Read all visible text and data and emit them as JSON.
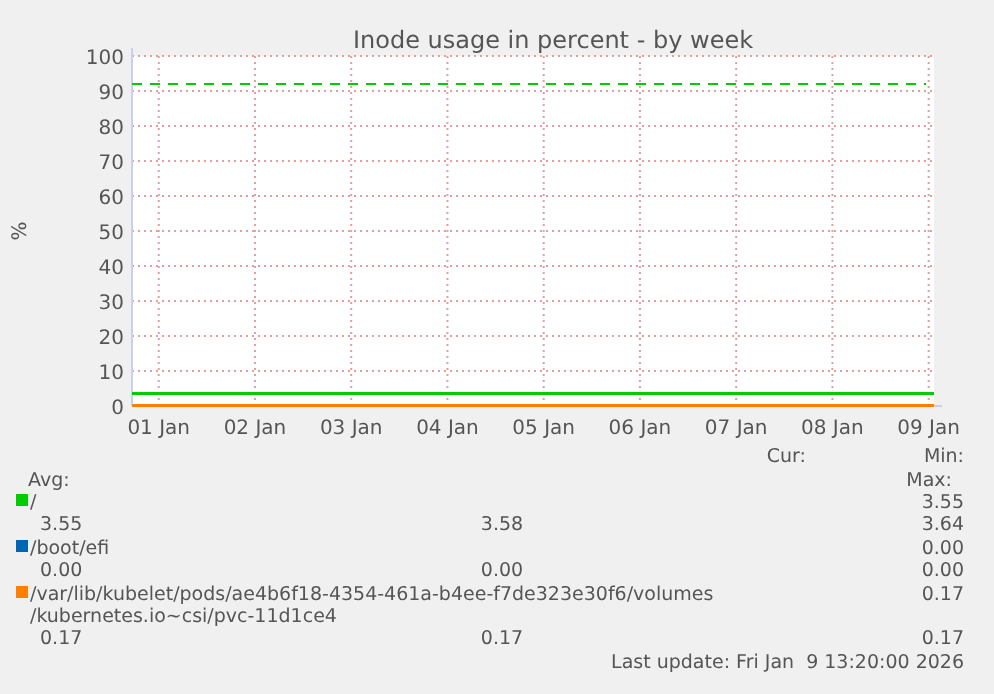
{
  "chart_data": {
    "type": "line",
    "title": "Inode usage in percent - by week",
    "ylabel": "%",
    "xlim": [
      "2026-01-01T05:20",
      "2026-01-09T13:20"
    ],
    "xticks": [
      {
        "value": "2026-01-01T12:00",
        "label": "01 Jan"
      },
      {
        "value": "2026-01-02T12:00",
        "label": "02 Jan"
      },
      {
        "value": "2026-01-03T12:00",
        "label": "03 Jan"
      },
      {
        "value": "2026-01-04T12:00",
        "label": "04 Jan"
      },
      {
        "value": "2026-01-05T12:00",
        "label": "05 Jan"
      },
      {
        "value": "2026-01-06T12:00",
        "label": "06 Jan"
      },
      {
        "value": "2026-01-07T12:00",
        "label": "07 Jan"
      },
      {
        "value": "2026-01-08T12:00",
        "label": "08 Jan"
      },
      {
        "value": "2026-01-09T12:00",
        "label": "09 Jan"
      }
    ],
    "ylim": [
      0,
      100
    ],
    "yticks": [
      0,
      10,
      20,
      30,
      40,
      50,
      60,
      70,
      80,
      90,
      100
    ],
    "grid": true,
    "legend": "bottom",
    "line_style": "solid",
    "x": [
      "2026-01-01T05:20",
      "2026-01-09T13:20"
    ],
    "series": [
      {
        "name": "/",
        "color": "#00cc00",
        "values": [
          3.6,
          3.55
        ]
      },
      {
        "name": "/boot/efi",
        "color": "#0066b3",
        "values": [
          null,
          null
        ]
      },
      {
        "name": "/var/lib/kubelet/pods/ae4b6f18-4354-461a-b4ee-f7de323e30f6/volumes/kubernetes.io~csi/pvc-11d1ce4",
        "color": "#ff8000",
        "values": [
          0.17,
          0.17
        ]
      }
    ],
    "ref_lines": [
      {
        "axis": "y",
        "value": 92,
        "color": "#00cc00",
        "line_style": "dashed"
      }
    ],
    "annotations": [
      "Cur:",
      "Min:",
      "Avg:",
      "Max:",
      "3.55",
      "3.55",
      "3.58",
      "3.64",
      "0.00",
      "0.00",
      "0.00",
      "0.00",
      "0.17",
      "0.17",
      "0.17",
      "0.17",
      "Last update: Fri Jan  9 13:20:00 2026"
    ]
  }
}
